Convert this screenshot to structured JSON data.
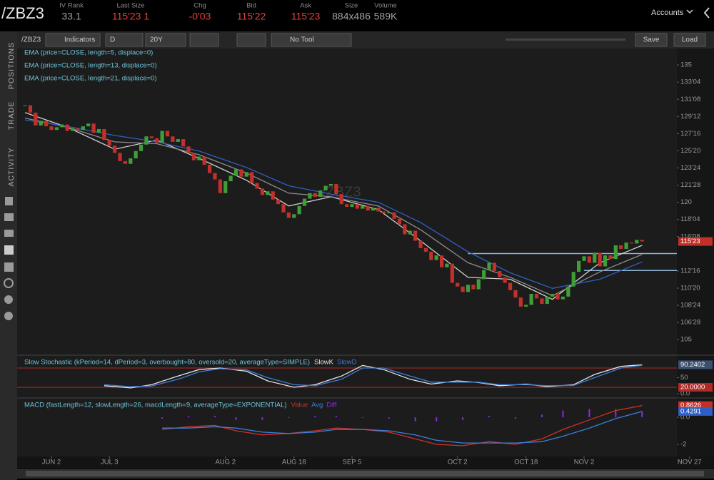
{
  "header": {
    "symbol": "/ZBZ3",
    "accounts": "Accounts",
    "fields": [
      {
        "label": "IV Rank",
        "value": "33.1",
        "color": "#a0a0a0"
      },
      {
        "label": "Last Size",
        "value": "115'23 1",
        "color": "#e0413a"
      },
      {
        "label": "Chg",
        "value": "-0'03",
        "color": "#e0413a"
      },
      {
        "label": "Bid",
        "value": "115'22",
        "color": "#e0413a"
      },
      {
        "label": "Ask",
        "value": "115'23",
        "color": "#e0413a"
      },
      {
        "label": "Size",
        "value": "884x486",
        "color": "#a0a0a0"
      },
      {
        "label": "Volume",
        "value": "589K",
        "color": "#a0a0a0"
      }
    ]
  },
  "sidebar": {
    "tabs": [
      "POSITIONS",
      "TRADE",
      "ACTIVITY"
    ]
  },
  "toolbar": {
    "symbol": "/ZBZ3",
    "indicators": "Indicators",
    "aggregation": "D",
    "period": "20Y",
    "tool": "No Tool",
    "save": "Save",
    "load": "Load"
  },
  "chart_data": [
    {
      "type": "candlestick",
      "watermark": "/ZBZ3",
      "up_color": "#3e9e38",
      "down_color": "#c2302a",
      "closes": [
        130.6,
        129.8,
        128.4,
        128.9,
        128.3,
        127.9,
        128.2,
        128.5,
        127.8,
        128.1,
        127.9,
        128.3,
        128.6,
        127.6,
        128.0,
        126.8,
        126.2,
        125.4,
        124.5,
        124.2,
        124.8,
        125.6,
        126.3,
        127.2,
        127.0,
        126.5,
        127.8,
        127.2,
        126.6,
        126.9,
        126.1,
        125.4,
        124.6,
        125.0,
        124.1,
        123.2,
        122.5,
        121.0,
        122.3,
        122.9,
        123.6,
        122.8,
        123.3,
        122.1,
        121.5,
        120.8,
        121.2,
        120.3,
        119.8,
        118.9,
        118.3,
        118.7,
        119.6,
        120.4,
        121.0,
        120.6,
        121.3,
        121.8,
        122.0,
        120.9,
        119.8,
        119.5,
        119.8,
        119.3,
        119.6,
        119.1,
        119.4,
        119.0,
        118.8,
        118.9,
        118.2,
        117.6,
        116.5,
        116.9,
        115.8,
        115.0,
        114.6,
        113.7,
        114.2,
        112.9,
        113.3,
        111.2,
        110.8,
        110.2,
        111.0,
        110.5,
        111.6,
        112.6,
        113.4,
        112.5,
        111.8,
        111.2,
        110.4,
        109.6,
        108.6,
        108.8,
        110.0,
        109.5,
        108.9,
        109.7,
        110.0,
        109.4,
        109.7,
        110.8,
        112.4,
        113.6,
        114.1,
        113.4,
        114.5,
        113.0,
        114.2,
        113.8,
        115.3,
        114.9,
        115.6,
        115.5,
        115.9,
        115.72
      ],
      "series": [
        {
          "name": "EMA (price=CLOSE, length=5, displace=0)",
          "color": "#cfcfcf",
          "x": [
            0,
            8,
            17,
            25,
            33,
            42,
            50,
            58,
            67,
            75,
            84,
            92,
            100,
            109,
            117
          ],
          "values": [
            129.8,
            128.2,
            125.8,
            126.8,
            124.8,
            122.4,
            119.6,
            120.6,
            119.2,
            115.8,
            111.8,
            111.6,
            109.4,
            113.4,
            115.3
          ]
        },
        {
          "name": "EMA (price=CLOSE, length=13, displace=0)",
          "color": "#8c8c8c",
          "x": [
            0,
            8,
            17,
            25,
            33,
            42,
            50,
            58,
            67,
            75,
            84,
            92,
            100,
            109,
            117
          ],
          "values": [
            129.2,
            128.2,
            126.6,
            126.4,
            125.2,
            123.2,
            121.0,
            120.6,
            119.6,
            117.0,
            113.4,
            111.8,
            109.8,
            112.4,
            114.3
          ]
        },
        {
          "name": "EMA (price=CLOSE, length=21, displace=0)",
          "color": "#2f5fc4",
          "x": [
            0,
            8,
            17,
            25,
            33,
            42,
            50,
            58,
            67,
            75,
            84,
            92,
            100,
            109,
            117
          ],
          "values": [
            129.0,
            128.3,
            127.3,
            126.6,
            125.6,
            123.8,
            121.8,
            120.9,
            120.0,
            117.8,
            114.6,
            112.3,
            110.6,
            111.6,
            113.5
          ]
        }
      ],
      "levels": [
        {
          "value": 114.4,
          "from": 84
        },
        {
          "value": 112.55,
          "from": 106
        }
      ],
      "level_color": "#8fb8d8",
      "flags": [
        {
          "value": 115.72,
          "label": "115'23",
          "color": "#c2302a"
        }
      ],
      "xlim": [
        -1.5,
        123.6
      ],
      "ylim": [
        103.3,
        136.8
      ],
      "xticks": [
        {
          "value": 5,
          "label": "JUN 2"
        },
        {
          "value": 16,
          "label": "JUL 3"
        },
        {
          "value": 38,
          "label": "AUG 2"
        },
        {
          "value": 51,
          "label": "AUG 18"
        },
        {
          "value": 62,
          "label": "SEP 5"
        },
        {
          "value": 82,
          "label": "OCT 2"
        },
        {
          "value": 95,
          "label": "OCT 18"
        },
        {
          "value": 106,
          "label": "NOV 2"
        },
        {
          "value": 126,
          "label": "NOV 27"
        }
      ],
      "yticks": [
        {
          "value": 135,
          "label": "135"
        },
        {
          "value": 133.125,
          "label": "133'04"
        },
        {
          "value": 131.25,
          "label": "131'08"
        },
        {
          "value": 129.375,
          "label": "129'12"
        },
        {
          "value": 127.5,
          "label": "127'16"
        },
        {
          "value": 125.625,
          "label": "125'20"
        },
        {
          "value": 123.75,
          "label": "123'24"
        },
        {
          "value": 121.875,
          "label": "121'28"
        },
        {
          "value": 120,
          "label": "120"
        },
        {
          "value": 118.125,
          "label": "118'04"
        },
        {
          "value": 116.25,
          "label": "116'08"
        },
        {
          "value": 112.5,
          "label": "112'16"
        },
        {
          "value": 110.625,
          "label": "110'20"
        },
        {
          "value": 108.75,
          "label": "108'24"
        },
        {
          "value": 106.875,
          "label": "106'28"
        },
        {
          "value": 105,
          "label": "105"
        }
      ]
    },
    {
      "type": "line",
      "title": "Slow Stochastic (kPeriod=14, dPeriod=3, overbought=80, oversold=20, averageType=SIMPLE)",
      "series": [
        {
          "name": "SlowK",
          "color": "#e6e6e6",
          "x": [
            15,
            20,
            24,
            29,
            33,
            37,
            42,
            46,
            51,
            55,
            60,
            64,
            68,
            73,
            77,
            82,
            86,
            90,
            95,
            99,
            104,
            108,
            113,
            117
          ],
          "values": [
            25,
            18,
            28,
            55,
            75,
            80,
            70,
            40,
            20,
            28,
            55,
            88,
            75,
            45,
            30,
            40,
            35,
            25,
            30,
            22,
            28,
            60,
            85,
            90
          ]
        },
        {
          "name": "SlowD",
          "color": "#3b7fd9",
          "x": [
            15,
            20,
            24,
            29,
            33,
            37,
            42,
            46,
            51,
            55,
            60,
            64,
            68,
            73,
            77,
            82,
            86,
            90,
            95,
            99,
            104,
            108,
            113,
            117
          ],
          "values": [
            28,
            22,
            24,
            45,
            68,
            78,
            74,
            50,
            28,
            25,
            45,
            80,
            80,
            55,
            36,
            36,
            36,
            28,
            28,
            25,
            26,
            50,
            80,
            88
          ]
        }
      ],
      "hlines": [
        80,
        20
      ],
      "hline_color": "#b02a25",
      "flags": [
        {
          "value": 90.2402,
          "label": "90.2402",
          "color": "#3a4f6e"
        },
        {
          "value": 20,
          "label": "20.0000",
          "color": "#b02a25"
        }
      ],
      "xlim": [
        -1.5,
        123.6
      ],
      "ylim": [
        -11,
        115.5
      ],
      "yticks": [
        {
          "value": 50,
          "label": "50"
        },
        {
          "value": 0,
          "label": "0.0"
        }
      ]
    },
    {
      "type": "macd",
      "title": "MACD (fastLength=12, slowLength=26, macdLength=9, averageType=EXPONENTIAL)",
      "series": [
        {
          "name": "Value",
          "color": "#d0302a",
          "x": [
            26,
            31,
            36,
            40,
            45,
            50,
            55,
            59,
            64,
            69,
            74,
            78,
            83,
            88,
            93,
            98,
            102,
            107,
            112,
            117
          ],
          "values": [
            -0.9,
            -0.7,
            -0.6,
            -1.0,
            -1.3,
            -1.2,
            -1.0,
            -0.8,
            -0.9,
            -1.1,
            -1.6,
            -2.0,
            -2.1,
            -1.8,
            -2.0,
            -1.6,
            -0.9,
            -0.2,
            0.5,
            0.86
          ]
        },
        {
          "name": "Avg",
          "color": "#3b7fd9",
          "x": [
            26,
            31,
            36,
            40,
            45,
            50,
            55,
            59,
            64,
            69,
            74,
            78,
            83,
            88,
            93,
            98,
            102,
            107,
            112,
            117
          ],
          "values": [
            -0.8,
            -0.8,
            -0.7,
            -0.8,
            -1.1,
            -1.2,
            -1.1,
            -0.9,
            -0.9,
            -1.0,
            -1.3,
            -1.7,
            -1.9,
            -1.9,
            -1.9,
            -1.8,
            -1.4,
            -0.8,
            -0.1,
            0.43
          ]
        }
      ],
      "diff": {
        "name": "Diff",
        "color": "#8a2be2",
        "x": [
          26,
          31,
          36,
          40,
          45,
          50,
          55,
          59,
          64,
          69,
          74,
          78,
          83,
          88,
          93,
          98,
          102,
          107,
          112,
          117
        ],
        "values": [
          -0.1,
          0.1,
          0.1,
          -0.2,
          -0.2,
          0,
          0.1,
          0.1,
          0,
          -0.1,
          -0.3,
          -0.3,
          -0.2,
          0.1,
          -0.1,
          0.2,
          0.5,
          0.6,
          0.6,
          0.43
        ]
      },
      "flags": [
        {
          "value": 0.8626,
          "label": "0.8626",
          "color": "#c2302a"
        },
        {
          "value": 0.4291,
          "label": "0.4291",
          "color": "#2f5fc4"
        }
      ],
      "xlim": [
        -1.5,
        123.6
      ],
      "ylim": [
        -2.79,
        1.32
      ],
      "yticks": [
        {
          "value": 0,
          "label": "0.0"
        },
        {
          "value": -2,
          "label": "-2"
        }
      ]
    }
  ]
}
